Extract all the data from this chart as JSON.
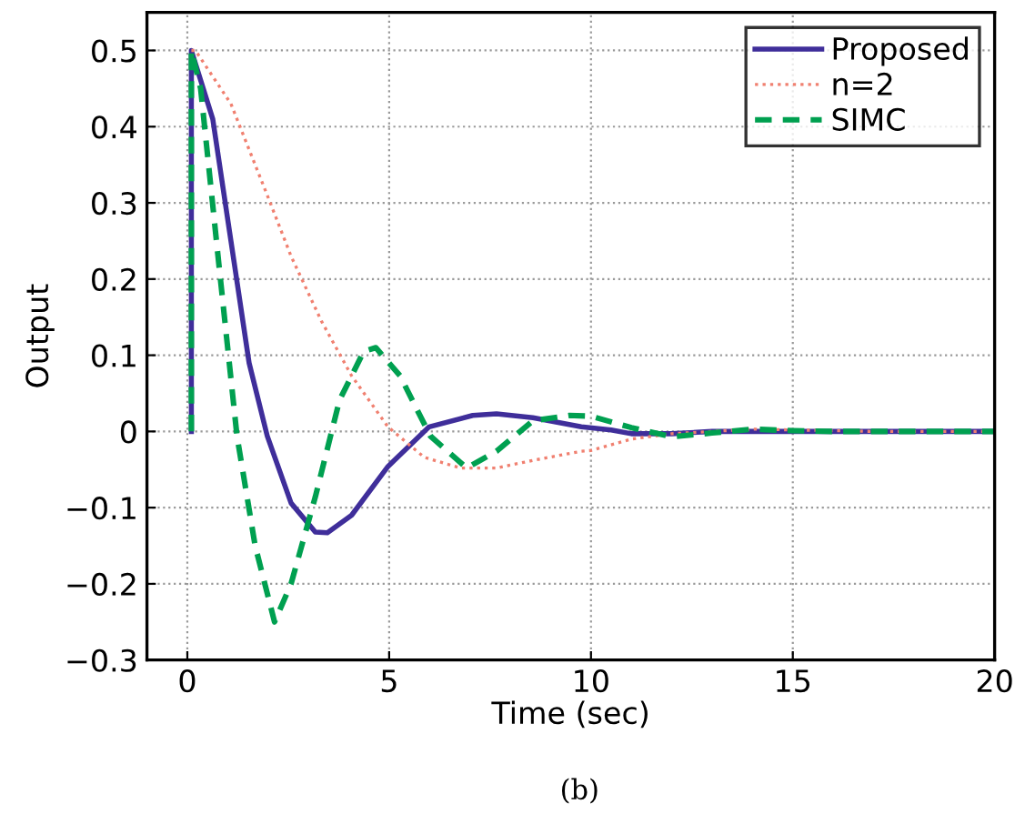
{
  "chart_data": {
    "type": "line",
    "xlabel": "Time (sec)",
    "ylabel": "Output",
    "annotations": [
      "(b)"
    ],
    "xlim": [
      -1,
      20
    ],
    "xticks": [
      0,
      5,
      10,
      15,
      20
    ],
    "ylim": [
      -0.3,
      0.55
    ],
    "yticks": [
      {
        "value": -0.3,
        "label": "−0.3"
      },
      {
        "value": -0.2,
        "label": "−0.2"
      },
      {
        "value": -0.1,
        "label": "−0.1"
      },
      0,
      0.1,
      0.2,
      0.3,
      0.4,
      0.5
    ],
    "grid": true,
    "legend": "top right",
    "series": [
      {
        "name": "Proposed",
        "color": "#3f2e9a",
        "line_style": "solid",
        "x": [
          0.1,
          0.1,
          0.63,
          1.08,
          1.53,
          1.98,
          2.57,
          3.17,
          3.47,
          4.07,
          4.97,
          5.99,
          7.07,
          7.66,
          8.56,
          9.76,
          10.5,
          11,
          12,
          13,
          15,
          20
        ],
        "values": [
          0,
          0.5,
          0.41,
          0.25,
          0.09,
          -0.006,
          -0.094,
          -0.132,
          -0.133,
          -0.11,
          -0.046,
          0.006,
          0.021,
          0.023,
          0.018,
          0.006,
          0.002,
          -0.003,
          -0.003,
          0,
          0,
          0
        ]
      },
      {
        "name": "n=2",
        "color": "#f08070",
        "line_style": "dotted",
        "x": [
          0.1,
          0.2,
          1.08,
          1.98,
          2.57,
          3.32,
          4.07,
          4.97,
          5.87,
          6.77,
          7.66,
          8.56,
          9.76,
          10,
          11,
          12,
          13,
          14,
          15,
          17,
          20
        ],
        "values": [
          0.5,
          0.5,
          0.43,
          0.31,
          0.23,
          0.145,
          0.073,
          0.006,
          -0.034,
          -0.048,
          -0.048,
          -0.038,
          -0.026,
          -0.025,
          -0.01,
          -0.003,
          0,
          0.003,
          0.002,
          0,
          0
        ]
      },
      {
        "name": "SIMC",
        "color": "#00a050",
        "line_style": "dashed",
        "x": [
          0.1,
          0.1,
          0.33,
          0.78,
          1.23,
          1.68,
          2.16,
          2.57,
          3.17,
          3.77,
          4.37,
          4.67,
          5.27,
          6.02,
          6.92,
          7.66,
          8.56,
          9.46,
          10,
          11,
          12,
          13,
          14,
          15,
          16,
          20
        ],
        "values": [
          0,
          0.5,
          0.45,
          0.22,
          -0.006,
          -0.15,
          -0.25,
          -0.2,
          -0.086,
          0.041,
          0.105,
          0.11,
          0.073,
          -0.006,
          -0.048,
          -0.026,
          0.014,
          0.021,
          0.02,
          0.005,
          -0.007,
          -0.002,
          0.003,
          0.001,
          0,
          0
        ]
      }
    ]
  }
}
